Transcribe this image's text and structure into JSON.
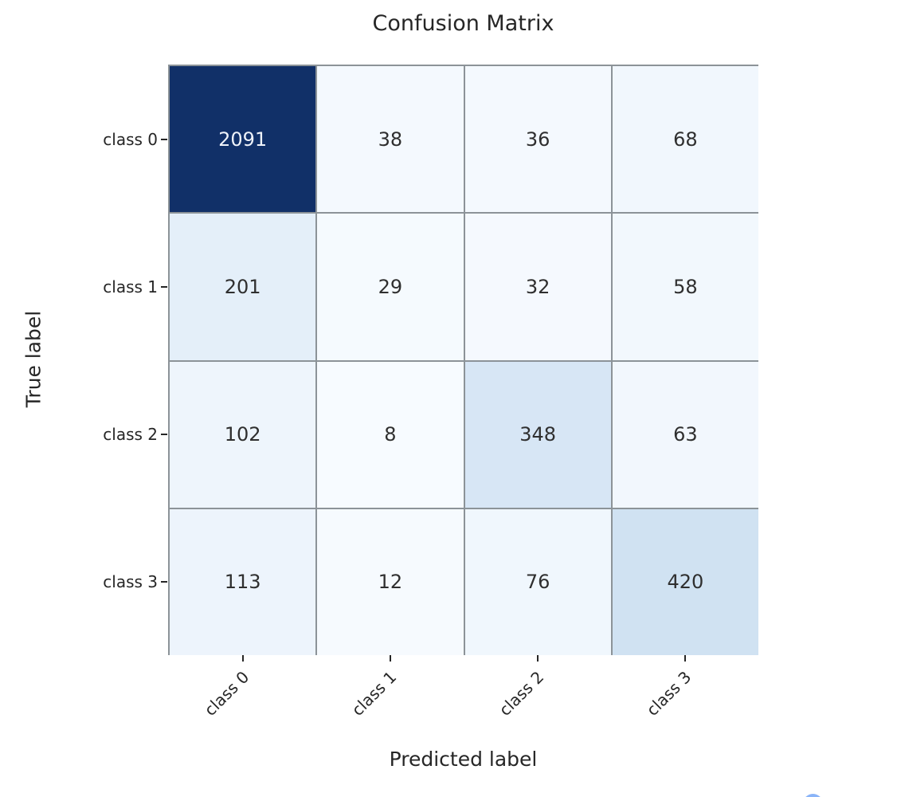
{
  "chart_data": {
    "type": "heatmap",
    "title": "Confusion Matrix",
    "xlabel": "Predicted label",
    "ylabel": "True label",
    "x_tick_labels": [
      "class 0",
      "class 1",
      "class 2",
      "class 3"
    ],
    "y_tick_labels": [
      "class 0",
      "class 1",
      "class 2",
      "class 3"
    ],
    "values": [
      [
        2091,
        38,
        36,
        68
      ],
      [
        201,
        29,
        32,
        58
      ],
      [
        102,
        8,
        348,
        63
      ],
      [
        113,
        12,
        76,
        420
      ]
    ],
    "colormap": "Blues",
    "vmin": 8,
    "vmax": 2091,
    "grid_lines": true,
    "legend": "none",
    "cell_colors": [
      [
        "#113068",
        "#f4f9fe",
        "#f4f9fe",
        "#f1f7fd"
      ],
      [
        "#e4eff9",
        "#f5fafe",
        "#f5f9fe",
        "#f2f8fd"
      ],
      [
        "#eef5fc",
        "#f7fbff",
        "#d7e6f5",
        "#f2f7fd"
      ],
      [
        "#edf4fc",
        "#f6fafe",
        "#f0f7fd",
        "#d0e2f2"
      ]
    ],
    "cell_text_colors": [
      [
        "#eef2f9",
        "#2f2f2f",
        "#2f2f2f",
        "#2f2f2f"
      ],
      [
        "#2f2f2f",
        "#2f2f2f",
        "#2f2f2f",
        "#2f2f2f"
      ],
      [
        "#2f2f2f",
        "#2f2f2f",
        "#2f2f2f",
        "#2f2f2f"
      ],
      [
        "#2f2f2f",
        "#2f2f2f",
        "#2f2f2f",
        "#2f2f2f"
      ]
    ],
    "colors": {
      "grid_line": "#8c9398",
      "axis_text": "#262626",
      "background": "#ffffff",
      "partial_button_blue": "#8ab4f8"
    }
  },
  "layout_hints": {
    "x_tick_rotation_deg": 45
  }
}
